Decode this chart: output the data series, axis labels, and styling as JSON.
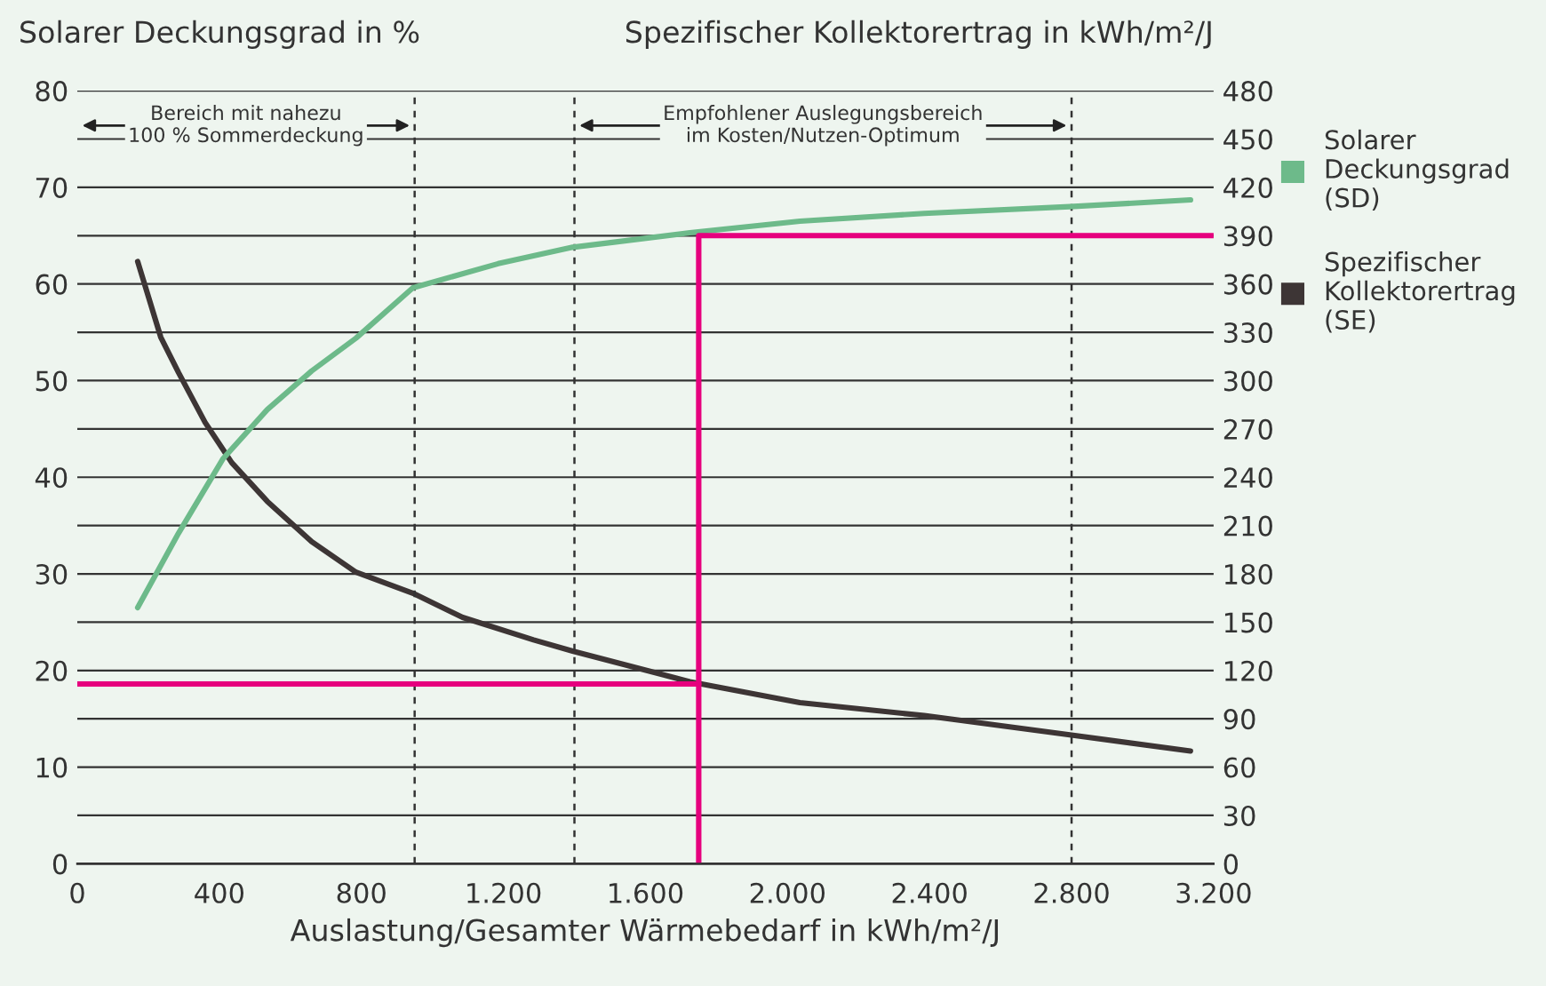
{
  "chart_data": {
    "type": "line",
    "ylabel": "Solarer Deckungsgrad in %",
    "y2label": "Spezifischer Kollektorertrag in kWh/m²/J",
    "xlabel": "Auslastung/Gesamter Wärmebedarf in kWh/m²/J",
    "xlim": [
      0,
      3200
    ],
    "xticks": [
      0,
      400,
      800,
      {
        "value": 1200,
        "label": "1.200"
      },
      {
        "value": 1600,
        "label": "1.600"
      },
      {
        "value": 2000,
        "label": "2.000"
      },
      {
        "value": 2400,
        "label": "2.400"
      },
      {
        "value": 2800,
        "label": "2.800"
      },
      {
        "value": 3200,
        "label": "3.200"
      }
    ],
    "ylim": [
      0,
      80
    ],
    "yticks": [
      0,
      10,
      20,
      30,
      40,
      50,
      60,
      70,
      80
    ],
    "y2lim": [
      0,
      480
    ],
    "y2ticks": [
      0,
      30,
      60,
      90,
      120,
      150,
      180,
      210,
      240,
      270,
      300,
      330,
      360,
      390,
      420,
      450,
      480
    ],
    "grid": "y",
    "legend": "right",
    "series": [
      {
        "name": "Solarer\nDeckungsgrad\n(SD)",
        "color": "#6dba8a",
        "x": [
          170,
          285,
          410,
          535,
          660,
          785,
          945,
          1185,
          1395,
          1725,
          2035,
          2385,
          2795,
          3135
        ],
        "values": [
          26.5,
          34.2,
          41.9,
          47,
          51,
          54.4,
          59.6,
          62.1,
          63.8,
          65.3,
          66.5,
          67.3,
          68,
          68.7
        ]
      },
      {
        "name": "Spezifischer\nKollektorertrag\n(SE)",
        "color": "#3d3535",
        "axis": "y2",
        "x": [
          170,
          235,
          285,
          360,
          435,
          535,
          660,
          785,
          945,
          1085,
          1285,
          1395,
          1725,
          2035,
          2385,
          2795,
          3135
        ],
        "values": [
          374,
          327,
          305,
          274,
          249,
          225,
          200,
          181,
          168,
          153,
          139,
          132,
          113,
          100,
          92,
          80,
          70
        ]
      },
      {
        "color": "#e6007e",
        "x": [
          1750,
          1750,
          3200
        ],
        "values": [
          0,
          65,
          65
        ]
      },
      {
        "color": "#e6007e",
        "x": [
          0,
          1750
        ],
        "values": [
          18.6,
          18.6
        ]
      }
    ],
    "ref_lines": [
      {
        "axis": "x",
        "value": 950,
        "line_style": "dashed"
      },
      {
        "axis": "x",
        "value": 1400,
        "line_style": "dashed"
      },
      {
        "axis": "x",
        "value": 2800,
        "line_style": "dashed"
      }
    ],
    "annotations": [
      "Bereich mit nahezu\n100 % Sommerdeckung",
      "Empfohlener Auslegungsbereich\nim Kosten/Nutzen-Optimum"
    ]
  }
}
